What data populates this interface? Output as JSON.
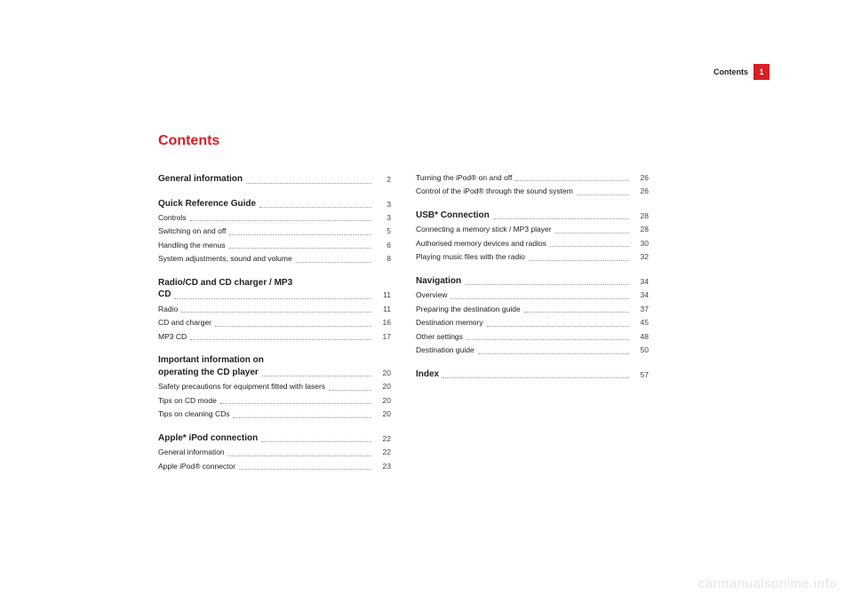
{
  "header": {
    "label": "Contents",
    "page_number": "1"
  },
  "title": "Contents",
  "colors": {
    "accent": "#d81e26",
    "text": "#222222",
    "dots": "#999999",
    "watermark": "#e5e5e5"
  },
  "col1": {
    "s1": {
      "head": "General information",
      "head_pg": "2"
    },
    "s2": {
      "head": "Quick Reference Guide",
      "head_pg": "3",
      "i1": {
        "label": "Controls",
        "pg": "3"
      },
      "i2": {
        "label": "Switching on and off",
        "pg": "5"
      },
      "i3": {
        "label": "Handling the menus",
        "pg": "6"
      },
      "i4": {
        "label": "System adjustments, sound and volume",
        "pg": "8"
      }
    },
    "s3": {
      "head_l1": "Radio/CD and CD charger / MP3",
      "head_l2": "CD",
      "head_pg": "11",
      "i1": {
        "label": "Radio",
        "pg": "11"
      },
      "i2": {
        "label": "CD and charger",
        "pg": "16"
      },
      "i3": {
        "label": "MP3 CD",
        "pg": "17"
      }
    },
    "s4": {
      "head_l1": "Important information on",
      "head_l2": "operating the CD player",
      "head_pg": "20",
      "i1": {
        "label": "Safety precautions for equipment fitted with lasers",
        "pg": "20"
      },
      "i2": {
        "label": "Tips on CD mode",
        "pg": "20"
      },
      "i3": {
        "label": "Tips on cleaning CDs",
        "pg": "20"
      }
    },
    "s5": {
      "head": "Apple* iPod connection",
      "head_pg": "22",
      "i1": {
        "label": "General information",
        "pg": "22"
      },
      "i2": {
        "label": "Apple iPod® connector",
        "pg": "23"
      }
    }
  },
  "col2": {
    "s0": {
      "i1": {
        "label": "Turning the iPod® on and off",
        "pg": "26"
      },
      "i2": {
        "label": "Control of the iPod® through the sound system",
        "pg": "26"
      }
    },
    "s1": {
      "head": "USB* Connection",
      "head_pg": "28",
      "i1": {
        "label": "Connecting a memory stick / MP3 player",
        "pg": "28"
      },
      "i2": {
        "label": "Authorised memory devices and radios",
        "pg": "30"
      },
      "i3": {
        "label": "Playing music files with the radio",
        "pg": "32"
      }
    },
    "s2": {
      "head": "Navigation",
      "head_pg": "34",
      "i1": {
        "label": "Overview",
        "pg": "34"
      },
      "i2": {
        "label": "Preparing the destination guide",
        "pg": "37"
      },
      "i3": {
        "label": "Destination memory",
        "pg": "45"
      },
      "i4": {
        "label": "Other settings",
        "pg": "48"
      },
      "i5": {
        "label": "Destination guide",
        "pg": "50"
      }
    },
    "s3": {
      "head": "Index",
      "head_pg": "57"
    }
  },
  "watermark": "carmanualsonline.info"
}
